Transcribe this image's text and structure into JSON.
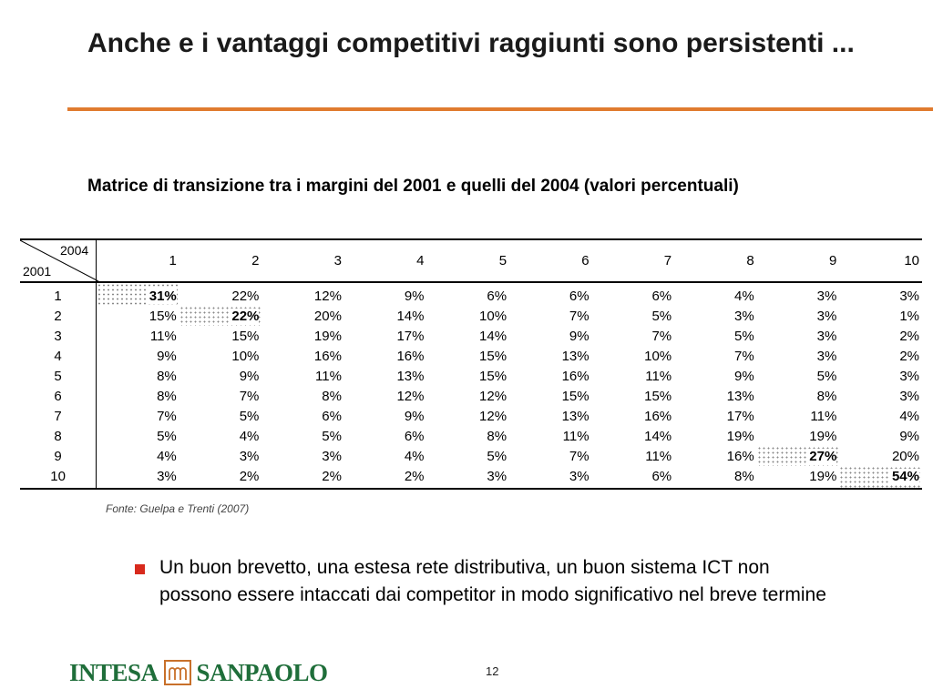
{
  "title": "Anche e i vantaggi competitivi raggiunti sono persistenti ...",
  "subtitle": "Matrice di transizione tra i margini del 2001 e quelli del 2004 (valori percentuali)",
  "chart_data": {
    "type": "table",
    "corner": {
      "top": "2004",
      "bottom": "2001"
    },
    "columns": [
      "1",
      "2",
      "3",
      "4",
      "5",
      "6",
      "7",
      "8",
      "9",
      "10"
    ],
    "rows": [
      {
        "label": "1",
        "values": [
          "31%",
          "22%",
          "12%",
          "9%",
          "6%",
          "6%",
          "6%",
          "4%",
          "3%",
          "3%"
        ],
        "highlight": 0
      },
      {
        "label": "2",
        "values": [
          "15%",
          "22%",
          "20%",
          "14%",
          "10%",
          "7%",
          "5%",
          "3%",
          "3%",
          "1%"
        ],
        "highlight": 1
      },
      {
        "label": "3",
        "values": [
          "11%",
          "15%",
          "19%",
          "17%",
          "14%",
          "9%",
          "7%",
          "5%",
          "3%",
          "2%"
        ]
      },
      {
        "label": "4",
        "values": [
          "9%",
          "10%",
          "16%",
          "16%",
          "15%",
          "13%",
          "10%",
          "7%",
          "3%",
          "2%"
        ]
      },
      {
        "label": "5",
        "values": [
          "8%",
          "9%",
          "11%",
          "13%",
          "15%",
          "16%",
          "11%",
          "9%",
          "5%",
          "3%"
        ]
      },
      {
        "label": "6",
        "values": [
          "8%",
          "7%",
          "8%",
          "12%",
          "12%",
          "15%",
          "15%",
          "13%",
          "8%",
          "3%"
        ]
      },
      {
        "label": "7",
        "values": [
          "7%",
          "5%",
          "6%",
          "9%",
          "12%",
          "13%",
          "16%",
          "17%",
          "11%",
          "4%"
        ]
      },
      {
        "label": "8",
        "values": [
          "5%",
          "4%",
          "5%",
          "6%",
          "8%",
          "11%",
          "14%",
          "19%",
          "19%",
          "9%"
        ]
      },
      {
        "label": "9",
        "values": [
          "4%",
          "3%",
          "3%",
          "4%",
          "5%",
          "7%",
          "11%",
          "16%",
          "27%",
          "20%"
        ],
        "highlight": 8
      },
      {
        "label": "10",
        "values": [
          "3%",
          "2%",
          "2%",
          "2%",
          "3%",
          "3%",
          "6%",
          "8%",
          "19%",
          "54%"
        ],
        "highlight": 9
      }
    ]
  },
  "source": "Fonte: Guelpa e Trenti (2007)",
  "bullet": "Un buon brevetto, una estesa rete distributiva, un buon sistema ICT non possono essere intaccati dai competitor in modo significativo nel breve termine",
  "logo": {
    "left": "INTESA",
    "right": "SANPAOLO",
    "icon": "intesa-sanpaolo-logo-mark"
  },
  "page_number": "12",
  "colors": {
    "accent": "#e07b2f",
    "bullet": "#d82a1d",
    "logo": "#1f6e3a"
  }
}
